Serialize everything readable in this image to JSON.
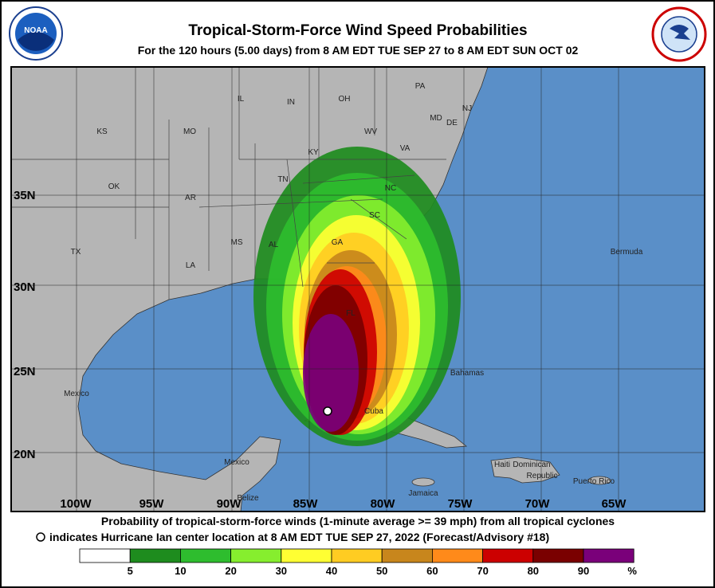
{
  "header": {
    "title": "Tropical-Storm-Force Wind Speed Probabilities",
    "subtitle": "For the 120 hours (5.00 days) from 8 AM EDT TUE SEP 27 to 8 AM EDT SUN OCT 02",
    "logo_left": "NOAA"
  },
  "map": {
    "longitude_labels": [
      "100W",
      "95W",
      "90W",
      "85W",
      "80W",
      "75W",
      "70W",
      "65W"
    ],
    "latitude_labels": [
      "35N",
      "30N",
      "25N",
      "20N"
    ],
    "place_labels": [
      "KS",
      "MO",
      "IL",
      "IN",
      "OH",
      "PA",
      "NJ",
      "MD",
      "DE",
      "WV",
      "VA",
      "KY",
      "TN",
      "NC",
      "OK",
      "AR",
      "SC",
      "GA",
      "MS",
      "AL",
      "FL",
      "LA",
      "TX",
      "Mexico",
      "Mexico",
      "Bahamas",
      "Cuba",
      "Bermuda",
      "Haiti",
      "Dominican",
      "Republic",
      "Puerto Rico",
      "Jamaica",
      "Belize"
    ]
  },
  "footer": {
    "line1": "Probability of tropical-storm-force winds (1-minute average >= 39 mph) from all tropical cyclones",
    "line2": "indicates Hurricane Ian center location at 8 AM EDT TUE SEP 27, 2022 (Forecast/Advisory #18)"
  },
  "legend": {
    "colors": [
      "#ffffff",
      "#1e8c1e",
      "#2ebd2e",
      "#86ee2e",
      "#ffff33",
      "#ffcc22",
      "#c8861c",
      "#ff8a1a",
      "#cc0000",
      "#7a0000",
      "#7a007a"
    ],
    "labels": [
      "5",
      "10",
      "20",
      "30",
      "40",
      "50",
      "60",
      "70",
      "80",
      "90"
    ],
    "unit": "%"
  }
}
